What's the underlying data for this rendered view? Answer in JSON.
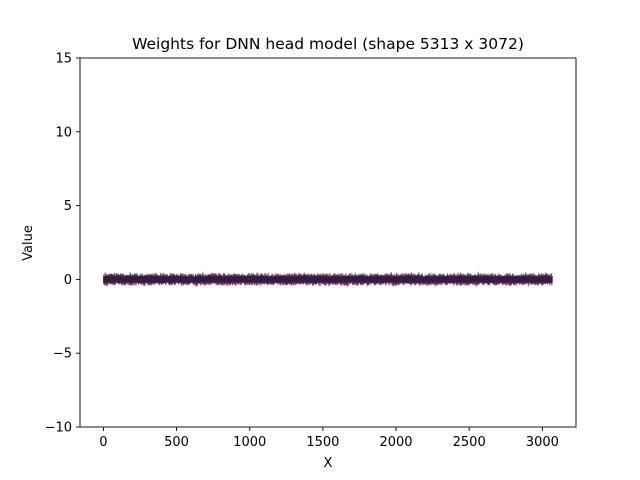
{
  "chart_data": {
    "type": "line",
    "title": "Weights for DNN head model (shape 5313 x 3072)",
    "xlabel": "X",
    "ylabel": "Value",
    "xlim": [
      -160,
      3230
    ],
    "ylim": [
      -10,
      15
    ],
    "xticks": [
      0,
      500,
      1000,
      1500,
      2000,
      2500,
      3000
    ],
    "yticks": [
      -10,
      -5,
      0,
      5,
      10,
      15
    ],
    "x_range": [
      0,
      3071
    ],
    "series_summary": {
      "count": 5313,
      "approx_min": -0.45,
      "approx_max": 0.45,
      "center": 0.0
    },
    "grid": false,
    "legend": "none",
    "colors": [
      "#1f1a3a",
      "#3b1f4e",
      "#6a2b55",
      "#8f3a52"
    ]
  }
}
